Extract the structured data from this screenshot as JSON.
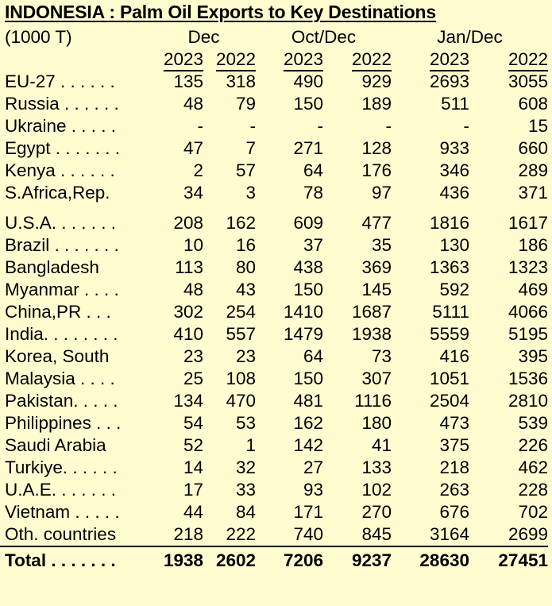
{
  "title": "INDONESIA : Palm Oil Exports to Key Destinations",
  "unit": "(1000 T)",
  "groups": [
    "Dec",
    "Oct/Dec",
    "Jan/Dec"
  ],
  "years": [
    "2023",
    "2022",
    "2023",
    "2022",
    "2023",
    "2022"
  ],
  "rows_a": [
    {
      "label": "EU-27 . . . . . .",
      "values": [
        "135",
        "318",
        "490",
        "929",
        "2693",
        "3055"
      ]
    },
    {
      "label": "Russia . . . . . .",
      "values": [
        "48",
        "79",
        "150",
        "189",
        "511",
        "608"
      ]
    },
    {
      "label": "Ukraine . . . . .",
      "values": [
        "-",
        "-",
        "-",
        "-",
        "-",
        "15"
      ]
    },
    {
      "label": "Egypt . . . . . . .",
      "values": [
        "47",
        "7",
        "271",
        "128",
        "933",
        "660"
      ]
    },
    {
      "label": "Kenya . . . . . .",
      "values": [
        "2",
        "57",
        "64",
        "176",
        "346",
        "289"
      ]
    },
    {
      "label": "S.Africa,Rep.",
      "values": [
        "34",
        "3",
        "78",
        "97",
        "436",
        "371"
      ]
    }
  ],
  "rows_b": [
    {
      "label": "U.S.A. . . . . . .",
      "values": [
        "208",
        "162",
        "609",
        "477",
        "1816",
        "1617"
      ]
    },
    {
      "label": "Brazil . . . . . . .",
      "values": [
        "10",
        "16",
        "37",
        "35",
        "130",
        "186"
      ]
    },
    {
      "label": "Bangladesh",
      "values": [
        "113",
        "80",
        "438",
        "369",
        "1363",
        "1323"
      ]
    },
    {
      "label": "Myanmar . . . .",
      "values": [
        "48",
        "43",
        "150",
        "145",
        "592",
        "469"
      ]
    },
    {
      "label": "China,PR . . .",
      "values": [
        "302",
        "254",
        "1410",
        "1687",
        "5111",
        "4066"
      ]
    },
    {
      "label": "India. . . . . . . .",
      "values": [
        "410",
        "557",
        "1479",
        "1938",
        "5559",
        "5195"
      ]
    },
    {
      "label": "Korea, South",
      "values": [
        "23",
        "23",
        "64",
        "73",
        "416",
        "395"
      ]
    },
    {
      "label": "Malaysia . . . .",
      "values": [
        "25",
        "108",
        "150",
        "307",
        "1051",
        "1536"
      ]
    },
    {
      "label": "Pakistan. . . . .",
      "values": [
        "134",
        "470",
        "481",
        "1116",
        "2504",
        "2810"
      ]
    },
    {
      "label": "Philippines . . .",
      "values": [
        "54",
        "53",
        "162",
        "180",
        "473",
        "539"
      ]
    },
    {
      "label": "Saudi Arabia",
      "values": [
        "52",
        "1",
        "142",
        "41",
        "375",
        "226"
      ]
    },
    {
      "label": "Turkiye. . . . . .",
      "values": [
        "14",
        "32",
        "27",
        "133",
        "218",
        "462"
      ]
    },
    {
      "label": "U.A.E. . . . . . .",
      "values": [
        "17",
        "33",
        "93",
        "102",
        "263",
        "228"
      ]
    },
    {
      "label": "Vietnam . . . . .",
      "values": [
        "44",
        "84",
        "171",
        "270",
        "676",
        "702"
      ]
    },
    {
      "label": "Oth. countries",
      "values": [
        "218",
        "222",
        "740",
        "845",
        "3164",
        "2699"
      ]
    }
  ],
  "total": {
    "label": "Total . . . . . . .",
    "values": [
      "1938",
      "2602",
      "7206",
      "9237",
      "28630",
      "27451"
    ]
  }
}
